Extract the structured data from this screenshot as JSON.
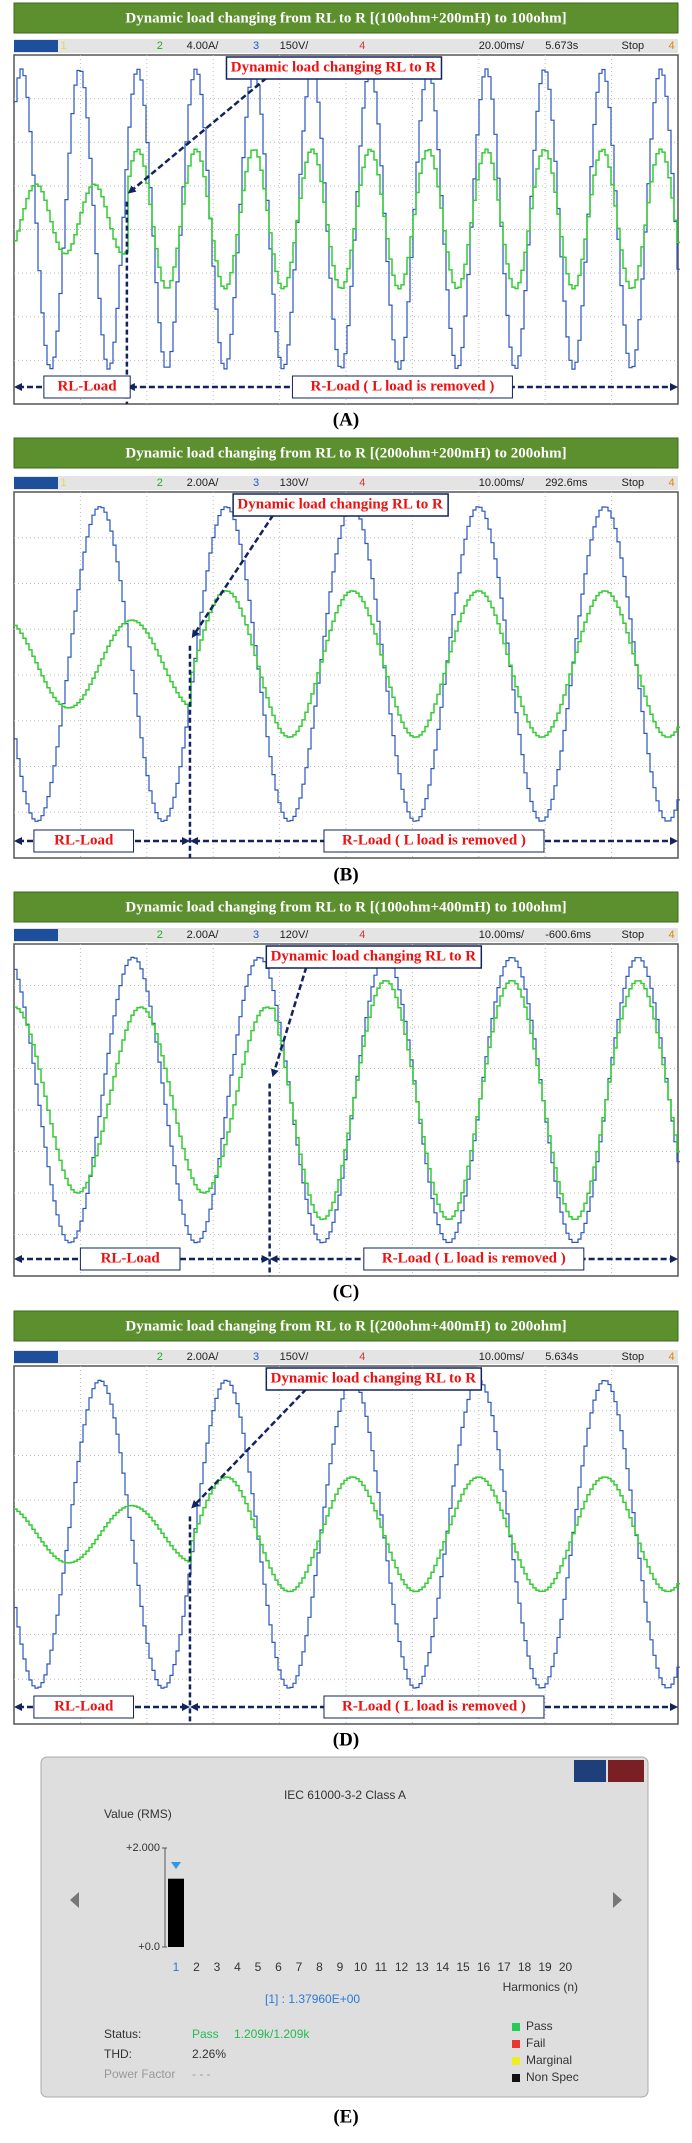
{
  "panels": [
    {
      "title": "Dynamic load changing from RL to R [(100ohm+200mH) to 100ohm]",
      "header": {
        "ch1": "1",
        "ch2": "2",
        "ch2_scale": "4.00A/",
        "ch3": "3",
        "ch3_scale": "150V/",
        "ch4": "4",
        "timebase": "20.00ms/",
        "time": "5.673s",
        "state": "Stop",
        "trig": "4"
      },
      "annotation": "Dynamic load changing RL to R",
      "left_label": "RL-Load",
      "right_label": "R-Load ( L load is removed )",
      "caption": "(A)"
    },
    {
      "title": "Dynamic load changing from RL to R [(200ohm+200mH) to 200ohm]",
      "header": {
        "ch1": "1",
        "ch2": "2",
        "ch2_scale": "2.00A/",
        "ch3": "3",
        "ch3_scale": "130V/",
        "ch4": "4",
        "timebase": "10.00ms/",
        "time": "292.6ms",
        "state": "Stop",
        "trig": "4"
      },
      "annotation": "Dynamic load changing RL to R",
      "left_label": "RL-Load",
      "right_label": "R-Load ( L load is removed )",
      "caption": "(B)"
    },
    {
      "title": "Dynamic load changing from RL to R [(100ohm+400mH) to 100ohm]",
      "header": {
        "ch2": "2",
        "ch2_scale": "2.00A/",
        "ch3": "3",
        "ch3_scale": "120V/",
        "ch4": "4",
        "timebase": "10.00ms/",
        "time": "-600.6ms",
        "state": "Stop",
        "trig": "4"
      },
      "annotation": "Dynamic load changing RL to R",
      "left_label": "RL-Load",
      "right_label": "R-Load ( L load is removed )",
      "caption": "(C)"
    },
    {
      "title": "Dynamic load changing from RL to R [(200ohm+400mH) to 200ohm]",
      "header": {
        "ch2": "2",
        "ch2_scale": "2.00A/",
        "ch3": "3",
        "ch3_scale": "150V/",
        "ch4": "4",
        "timebase": "10.00ms/",
        "time": "5.634s",
        "state": "Stop",
        "trig": "4"
      },
      "annotation": "Dynamic load changing RL to R",
      "left_label": "RL-Load",
      "right_label": "R-Load ( L load is removed )",
      "caption": "(D)"
    }
  ],
  "harmonics": {
    "type": "bar",
    "title": "IEC 61000-3-2 Class A",
    "y_label": "Value (RMS)",
    "x_label": "Harmonics (n)",
    "categories": [
      "1",
      "2",
      "3",
      "4",
      "5",
      "6",
      "7",
      "8",
      "9",
      "10",
      "11",
      "12",
      "13",
      "14",
      "15",
      "16",
      "17",
      "18",
      "19",
      "20"
    ],
    "values": [
      1.3796,
      0,
      0,
      0,
      0,
      0,
      0,
      0,
      0,
      0,
      0,
      0,
      0,
      0,
      0,
      0,
      0,
      0,
      0,
      0
    ],
    "color": "#000000",
    "ylim": [
      0,
      2
    ],
    "yticks": [
      {
        "value": 2,
        "label": "+2.000"
      },
      {
        "value": 0,
        "label": "+0.0"
      }
    ],
    "readout": "[1] : 1.37960E+00",
    "status": [
      {
        "label": "Status:",
        "value": "Pass",
        "detail": "1.209k/1.209k"
      },
      {
        "label": "THD:",
        "value": "2.26%"
      },
      {
        "label": "Power Factor",
        "value": "- - -"
      }
    ],
    "legend": [
      {
        "name": "Pass",
        "color": "#22cc55"
      },
      {
        "name": "Fail",
        "color": "#ee3333"
      },
      {
        "name": "Marginal",
        "color": "#eeee22"
      },
      {
        "name": "Non Spec",
        "color": "#111111"
      }
    ],
    "caption": "(E)"
  }
}
